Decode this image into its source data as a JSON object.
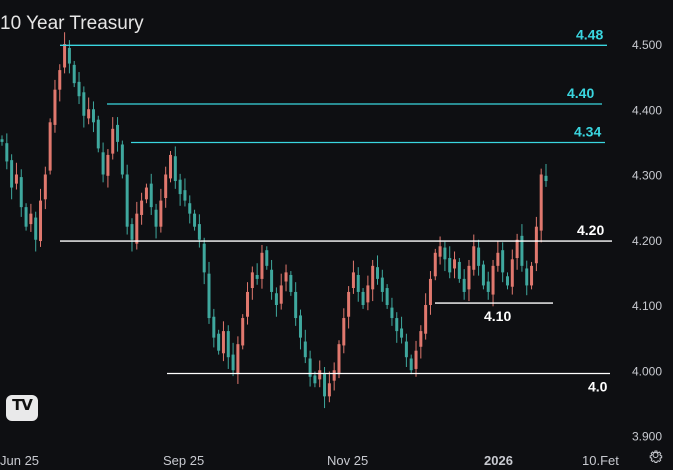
{
  "header": {
    "title": "10 Year Treasury"
  },
  "branding": {
    "logo_icon": "tradingview-logo-icon"
  },
  "settings": {
    "icon": "gear-icon"
  },
  "colors": {
    "background": "#0e0f12",
    "up_candle": "#e0786e",
    "down_candle": "#3fa89e",
    "resistance_line": "#3ad6e0",
    "support_line": "#ffffff",
    "axis_text": "#c8cad0"
  },
  "chart_data": {
    "type": "candlestick",
    "title": "10 Year Treasury",
    "xlabel": "",
    "ylabel": "",
    "ylim": [
      3.88,
      4.52
    ],
    "x_tick_labels": [
      "Jun 25",
      "Sep 25",
      "Nov 25",
      "2026",
      "10.Fet"
    ],
    "y_tick_labels": [
      "4.500",
      "4.400",
      "4.300",
      "4.200",
      "4.100",
      "4.000",
      "3.900"
    ],
    "y_ticks": [
      4.5,
      4.4,
      4.3,
      4.2,
      4.1,
      4.0,
      3.9
    ],
    "grid": false,
    "horizontal_levels": [
      {
        "label": "4.48",
        "value": 4.498,
        "style": "resistance"
      },
      {
        "label": "4.40",
        "value": 4.408,
        "style": "resistance"
      },
      {
        "label": "4.34",
        "value": 4.349,
        "style": "resistance"
      },
      {
        "label": "4.20",
        "value": 4.198,
        "style": "support"
      },
      {
        "label": "4.10",
        "value": 4.103,
        "style": "support"
      },
      {
        "label": "4.0",
        "value": 3.995,
        "style": "support"
      }
    ],
    "close_series": [
      4.35,
      4.32,
      4.28,
      4.3,
      4.25,
      4.22,
      4.24,
      4.2,
      4.26,
      4.3,
      4.38,
      4.43,
      4.46,
      4.5,
      4.47,
      4.44,
      4.42,
      4.39,
      4.4,
      4.38,
      4.34,
      4.3,
      4.33,
      4.37,
      4.35,
      4.3,
      4.22,
      4.2,
      4.24,
      4.26,
      4.28,
      4.25,
      4.22,
      4.26,
      4.3,
      4.33,
      4.29,
      4.27,
      4.26,
      4.24,
      4.22,
      4.2,
      4.15,
      4.08,
      4.05,
      4.03,
      4.06,
      4.02,
      4.0,
      4.04,
      4.08,
      4.12,
      4.15,
      4.14,
      4.18,
      4.16,
      4.12,
      4.1,
      4.13,
      4.15,
      4.12,
      4.08,
      4.05,
      4.02,
      3.99,
      3.98,
      4.0,
      3.96,
      3.98,
      4.0,
      4.04,
      4.08,
      4.12,
      4.15,
      4.12,
      4.1,
      4.13,
      4.16,
      4.14,
      4.12,
      4.1,
      4.08,
      4.06,
      4.05,
      4.02,
      4.0,
      4.03,
      4.06,
      4.1,
      4.14,
      4.18,
      4.19,
      4.17,
      4.15,
      4.17,
      4.14,
      4.12,
      4.16,
      4.19,
      4.16,
      4.13,
      4.12,
      4.16,
      4.18,
      4.15,
      4.13,
      4.17,
      4.2,
      4.16,
      4.13,
      4.16,
      4.22,
      4.3,
      4.29
    ]
  }
}
